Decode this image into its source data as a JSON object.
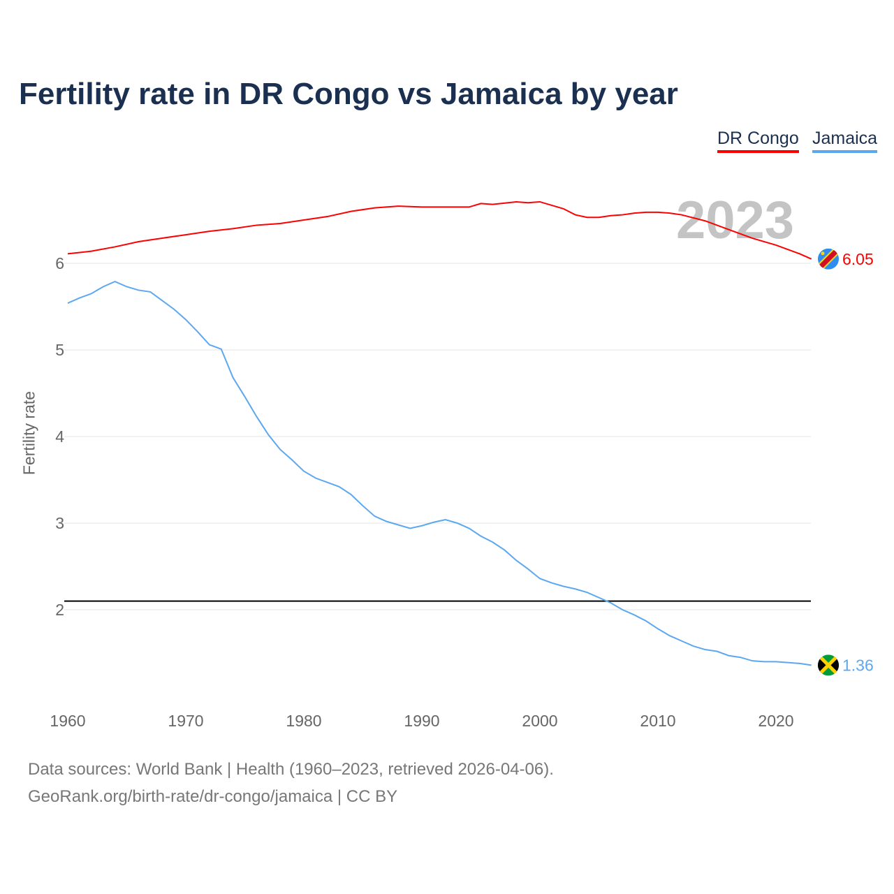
{
  "title": "Fertility rate in DR Congo vs Jamaica by year",
  "current_year_label": "2023",
  "footer": {
    "line1": "Data sources: World Bank | Health (1960–2023, retrieved 2026-04-06).",
    "line2": "GeoRank.org/birth-rate/dr-congo/jamaica | CC BY"
  },
  "chart_data": {
    "type": "line",
    "title": "Fertility rate in DR Congo vs Jamaica by year",
    "xlabel": "",
    "ylabel": "Fertility rate",
    "xlim": [
      1960,
      2023
    ],
    "ylim": [
      1,
      7
    ],
    "xticks": [
      1960,
      1970,
      1980,
      1990,
      2000,
      2010,
      2020
    ],
    "yticks": [
      2,
      3,
      4,
      5,
      6
    ],
    "reference_line": 2.1,
    "legend_position": "top-right",
    "series": [
      {
        "name": "DR Congo",
        "color": "#ff0000",
        "end_label": "6.05",
        "flag": "dr-congo-flag",
        "points": [
          [
            1960,
            6.11
          ],
          [
            1962,
            6.14
          ],
          [
            1964,
            6.19
          ],
          [
            1966,
            6.25
          ],
          [
            1968,
            6.29
          ],
          [
            1970,
            6.33
          ],
          [
            1972,
            6.37
          ],
          [
            1974,
            6.4
          ],
          [
            1976,
            6.44
          ],
          [
            1978,
            6.46
          ],
          [
            1980,
            6.5
          ],
          [
            1982,
            6.54
          ],
          [
            1984,
            6.6
          ],
          [
            1986,
            6.64
          ],
          [
            1988,
            6.66
          ],
          [
            1990,
            6.65
          ],
          [
            1992,
            6.65
          ],
          [
            1994,
            6.65
          ],
          [
            1995,
            6.69
          ],
          [
            1996,
            6.68
          ],
          [
            1998,
            6.71
          ],
          [
            1999,
            6.7
          ],
          [
            2000,
            6.71
          ],
          [
            2002,
            6.63
          ],
          [
            2003,
            6.56
          ],
          [
            2004,
            6.53
          ],
          [
            2005,
            6.53
          ],
          [
            2006,
            6.55
          ],
          [
            2007,
            6.56
          ],
          [
            2008,
            6.58
          ],
          [
            2009,
            6.59
          ],
          [
            2010,
            6.59
          ],
          [
            2011,
            6.58
          ],
          [
            2012,
            6.56
          ],
          [
            2014,
            6.49
          ],
          [
            2016,
            6.39
          ],
          [
            2018,
            6.29
          ],
          [
            2020,
            6.21
          ],
          [
            2022,
            6.11
          ],
          [
            2023,
            6.05
          ]
        ]
      },
      {
        "name": "Jamaica",
        "color": "#5ca8f0",
        "end_label": "1.36",
        "flag": "jamaica-flag",
        "points": [
          [
            1960,
            5.54
          ],
          [
            1961,
            5.6
          ],
          [
            1962,
            5.65
          ],
          [
            1963,
            5.73
          ],
          [
            1964,
            5.79
          ],
          [
            1965,
            5.73
          ],
          [
            1966,
            5.69
          ],
          [
            1967,
            5.67
          ],
          [
            1968,
            5.57
          ],
          [
            1969,
            5.47
          ],
          [
            1970,
            5.35
          ],
          [
            1971,
            5.21
          ],
          [
            1972,
            5.06
          ],
          [
            1973,
            5.01
          ],
          [
            1974,
            4.68
          ],
          [
            1975,
            4.46
          ],
          [
            1976,
            4.23
          ],
          [
            1977,
            4.02
          ],
          [
            1978,
            3.85
          ],
          [
            1979,
            3.73
          ],
          [
            1980,
            3.6
          ],
          [
            1981,
            3.52
          ],
          [
            1982,
            3.47
          ],
          [
            1983,
            3.42
          ],
          [
            1984,
            3.33
          ],
          [
            1985,
            3.2
          ],
          [
            1986,
            3.08
          ],
          [
            1987,
            3.02
          ],
          [
            1988,
            2.98
          ],
          [
            1989,
            2.94
          ],
          [
            1990,
            2.97
          ],
          [
            1991,
            3.01
          ],
          [
            1992,
            3.04
          ],
          [
            1993,
            3.0
          ],
          [
            1994,
            2.94
          ],
          [
            1995,
            2.85
          ],
          [
            1996,
            2.78
          ],
          [
            1997,
            2.69
          ],
          [
            1998,
            2.57
          ],
          [
            1999,
            2.47
          ],
          [
            2000,
            2.36
          ],
          [
            2001,
            2.31
          ],
          [
            2002,
            2.27
          ],
          [
            2003,
            2.24
          ],
          [
            2004,
            2.2
          ],
          [
            2005,
            2.14
          ],
          [
            2006,
            2.08
          ],
          [
            2007,
            2.0
          ],
          [
            2008,
            1.94
          ],
          [
            2009,
            1.87
          ],
          [
            2010,
            1.78
          ],
          [
            2011,
            1.7
          ],
          [
            2012,
            1.64
          ],
          [
            2013,
            1.58
          ],
          [
            2014,
            1.54
          ],
          [
            2015,
            1.52
          ],
          [
            2016,
            1.47
          ],
          [
            2017,
            1.45
          ],
          [
            2018,
            1.41
          ],
          [
            2019,
            1.4
          ],
          [
            2020,
            1.4
          ],
          [
            2021,
            1.39
          ],
          [
            2022,
            1.38
          ],
          [
            2023,
            1.36
          ]
        ]
      }
    ]
  }
}
